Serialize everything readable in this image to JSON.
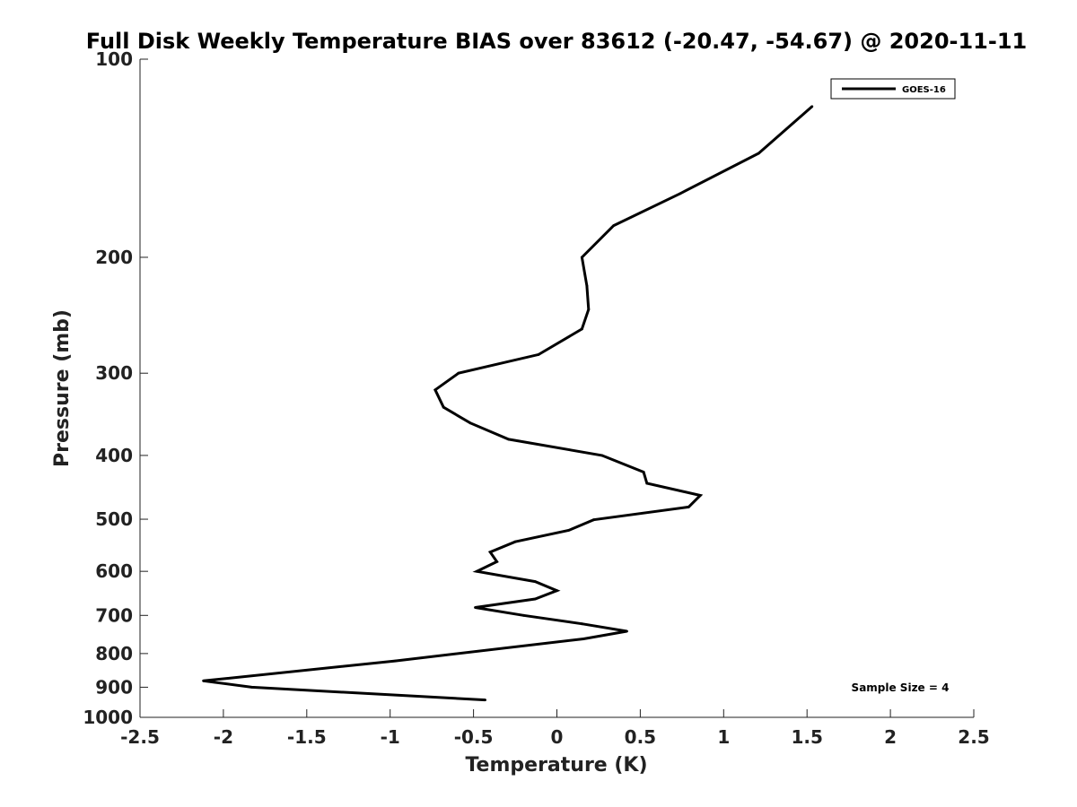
{
  "chart_data": {
    "type": "line",
    "title": "Full Disk Weekly Temperature BIAS over 83612 (-20.47, -54.67) @ 2020-11-11",
    "xlabel": "Temperature (K)",
    "ylabel": "Pressure (mb)",
    "xlim": [
      -2.5,
      2.5
    ],
    "ylim": [
      1000,
      100
    ],
    "y_scale": "log",
    "y_reversed": true,
    "x_ticks": [
      -2.5,
      -2,
      -1.5,
      -1,
      -0.5,
      0,
      0.5,
      1,
      1.5,
      2,
      2.5
    ],
    "x_tick_labels": [
      "-2.5",
      "-2",
      "-1.5",
      "-1",
      "-0.5",
      "0",
      "0.5",
      "1",
      "1.5",
      "2",
      "2.5"
    ],
    "y_ticks": [
      100,
      200,
      300,
      400,
      500,
      600,
      700,
      800,
      900,
      1000
    ],
    "y_tick_labels": [
      "100",
      "200",
      "300",
      "400",
      "500",
      "600",
      "700",
      "800",
      "900",
      "1000"
    ],
    "grid": false,
    "legend_position": "top-right",
    "series": [
      {
        "name": "GOES-16",
        "color": "#000000",
        "points": [
          {
            "x": 1.53,
            "p": 118
          },
          {
            "x": 1.21,
            "p": 139
          },
          {
            "x": 0.74,
            "p": 160
          },
          {
            "x": 0.34,
            "p": 179
          },
          {
            "x": 0.15,
            "p": 200
          },
          {
            "x": 0.18,
            "p": 221
          },
          {
            "x": 0.19,
            "p": 240
          },
          {
            "x": 0.15,
            "p": 257
          },
          {
            "x": -0.11,
            "p": 281
          },
          {
            "x": -0.59,
            "p": 300
          },
          {
            "x": -0.73,
            "p": 318
          },
          {
            "x": -0.68,
            "p": 338
          },
          {
            "x": -0.52,
            "p": 357
          },
          {
            "x": -0.29,
            "p": 378
          },
          {
            "x": 0.27,
            "p": 400
          },
          {
            "x": 0.52,
            "p": 424
          },
          {
            "x": 0.54,
            "p": 441
          },
          {
            "x": 0.86,
            "p": 460
          },
          {
            "x": 0.79,
            "p": 479
          },
          {
            "x": 0.22,
            "p": 501
          },
          {
            "x": 0.07,
            "p": 520
          },
          {
            "x": -0.25,
            "p": 541
          },
          {
            "x": -0.4,
            "p": 561
          },
          {
            "x": -0.36,
            "p": 580
          },
          {
            "x": -0.48,
            "p": 600
          },
          {
            "x": -0.13,
            "p": 622
          },
          {
            "x": 0.0,
            "p": 642
          },
          {
            "x": -0.13,
            "p": 661
          },
          {
            "x": -0.49,
            "p": 681
          },
          {
            "x": -0.2,
            "p": 700
          },
          {
            "x": 0.15,
            "p": 721
          },
          {
            "x": 0.42,
            "p": 740
          },
          {
            "x": 0.16,
            "p": 760
          },
          {
            "x": -0.97,
            "p": 821
          },
          {
            "x": -2.12,
            "p": 880
          },
          {
            "x": -1.83,
            "p": 900
          },
          {
            "x": -0.43,
            "p": 941
          }
        ]
      }
    ],
    "annotation": "Sample Size = 4"
  }
}
